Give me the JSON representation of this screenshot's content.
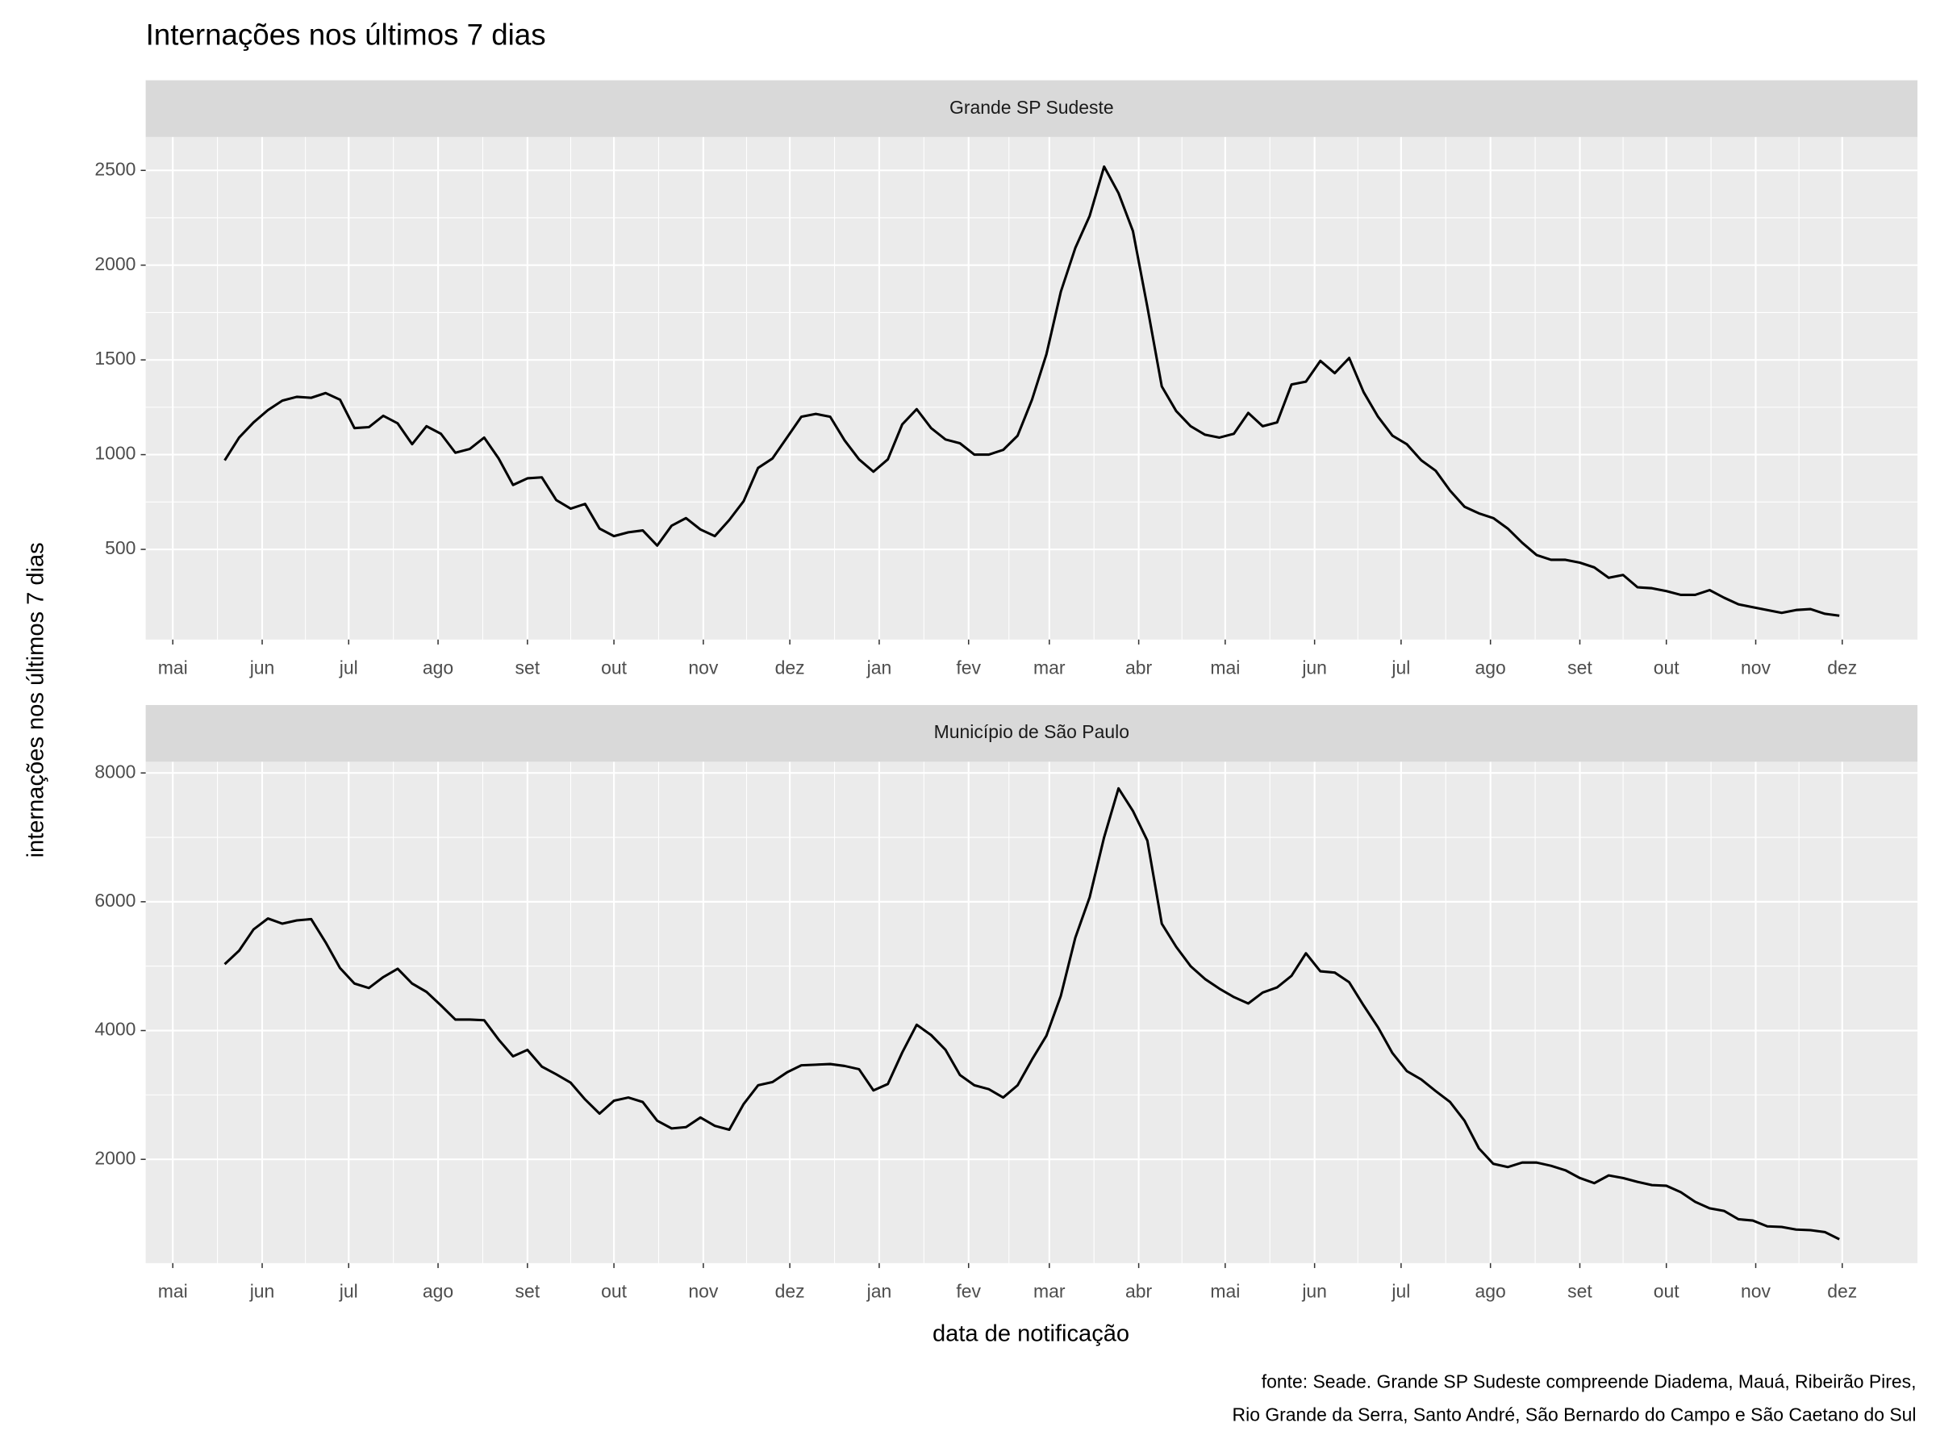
{
  "title": "Internações nos últimos 7 dias",
  "x_label": "data de notificação",
  "y_label": "internações nos últimos 7 dias",
  "caption": [
    "fonte: Seade. Grande SP Sudeste compreende Diadema, Mauá, Ribeirão Pires,",
    "Rio Grande da Serra, Santo André, São Bernardo do Campo e São Caetano do Sul"
  ],
  "chart_data": [
    {
      "type": "line",
      "title": "Grande SP Sudeste",
      "color": "#000000",
      "grid": true,
      "x": [
        18,
        23,
        28,
        33,
        38,
        43,
        48,
        53,
        58,
        63,
        68,
        73,
        78,
        83,
        88,
        93,
        98,
        103,
        108,
        113,
        118,
        123,
        128,
        133,
        138,
        143,
        148,
        153,
        158,
        163,
        168,
        173,
        178,
        183,
        188,
        193,
        198,
        203,
        208,
        213,
        218,
        223,
        228,
        233,
        238,
        243,
        248,
        253,
        258,
        263,
        268,
        273,
        278,
        283,
        288,
        293,
        298,
        303,
        308,
        313,
        318,
        323,
        328,
        333,
        338,
        343,
        348,
        353,
        358,
        363,
        368,
        373,
        378,
        383,
        388,
        393,
        398,
        403,
        408,
        413,
        418,
        423,
        428,
        433,
        438,
        443,
        448,
        453,
        458,
        463,
        468,
        473,
        478,
        483,
        488,
        493,
        498,
        503,
        508,
        513,
        518,
        523,
        528,
        533,
        538,
        543,
        548,
        553,
        558,
        563,
        568,
        573,
        578
      ],
      "values": [
        970,
        1090,
        1170,
        1235,
        1285,
        1305,
        1300,
        1325,
        1290,
        1140,
        1145,
        1205,
        1165,
        1055,
        1150,
        1110,
        1010,
        1030,
        1090,
        980,
        840,
        875,
        880,
        760,
        715,
        740,
        610,
        570,
        590,
        600,
        520,
        625,
        665,
        605,
        570,
        655,
        755,
        930,
        980,
        1090,
        1200,
        1215,
        1200,
        1075,
        975,
        910,
        975,
        1160,
        1240,
        1140,
        1080,
        1060,
        1000,
        1000,
        1025,
        1100,
        1290,
        1530,
        1860,
        2090,
        2260,
        2520,
        2380,
        2180,
        1780,
        1360,
        1230,
        1150,
        1105,
        1090,
        1110,
        1220,
        1150,
        1170,
        1370,
        1385,
        1495,
        1430,
        1510,
        1330,
        1200,
        1100,
        1055,
        970,
        915,
        810,
        725,
        690,
        665,
        610,
        535,
        470,
        445,
        445,
        430,
        405,
        350,
        365,
        300,
        295,
        280,
        260,
        260,
        285,
        245,
        210,
        195,
        180,
        165,
        180,
        185,
        160,
        150
      ],
      "xlim": [
        -9.4,
        605.1
      ],
      "xticks": [
        {
          "value": 0,
          "label": "mai"
        },
        {
          "value": 31,
          "label": "jun"
        },
        {
          "value": 61,
          "label": "jul"
        },
        {
          "value": 92,
          "label": "ago"
        },
        {
          "value": 123,
          "label": "set"
        },
        {
          "value": 153,
          "label": "out"
        },
        {
          "value": 184,
          "label": "nov"
        },
        {
          "value": 214,
          "label": "dez"
        },
        {
          "value": 245,
          "label": "jan"
        },
        {
          "value": 276,
          "label": "fev"
        },
        {
          "value": 304,
          "label": "mar"
        },
        {
          "value": 335,
          "label": "abr"
        },
        {
          "value": 365,
          "label": "mai"
        },
        {
          "value": 396,
          "label": "jun"
        },
        {
          "value": 426,
          "label": "jul"
        },
        {
          "value": 457,
          "label": "ago"
        },
        {
          "value": 488,
          "label": "set"
        },
        {
          "value": 518,
          "label": "out"
        },
        {
          "value": 549,
          "label": "nov"
        },
        {
          "value": 579,
          "label": "dez"
        }
      ],
      "ylim": [
        24,
        2676
      ],
      "yticks": [
        500,
        1000,
        1500,
        2000,
        2500
      ]
    },
    {
      "type": "line",
      "title": "Município de São Paulo",
      "color": "#000000",
      "grid": true,
      "x": [
        18,
        23,
        28,
        33,
        38,
        43,
        48,
        53,
        58,
        63,
        68,
        73,
        78,
        83,
        88,
        93,
        98,
        103,
        108,
        113,
        118,
        123,
        128,
        133,
        138,
        143,
        148,
        153,
        158,
        163,
        168,
        173,
        178,
        183,
        188,
        193,
        198,
        203,
        208,
        213,
        218,
        223,
        228,
        233,
        238,
        243,
        248,
        253,
        258,
        263,
        268,
        273,
        278,
        283,
        288,
        293,
        298,
        303,
        308,
        313,
        318,
        323,
        328,
        333,
        338,
        343,
        348,
        353,
        358,
        363,
        368,
        373,
        378,
        383,
        388,
        393,
        398,
        403,
        408,
        413,
        418,
        423,
        428,
        433,
        438,
        443,
        448,
        453,
        458,
        463,
        468,
        473,
        478,
        483,
        488,
        493,
        498,
        503,
        508,
        513,
        518,
        523,
        528,
        533,
        538,
        543,
        548,
        553,
        558,
        563,
        568,
        573,
        578
      ],
      "values": [
        5030,
        5240,
        5570,
        5740,
        5660,
        5710,
        5730,
        5370,
        4970,
        4730,
        4660,
        4830,
        4960,
        4730,
        4600,
        4390,
        4170,
        4170,
        4160,
        3860,
        3600,
        3700,
        3440,
        3320,
        3190,
        2930,
        2710,
        2910,
        2960,
        2890,
        2600,
        2480,
        2500,
        2650,
        2520,
        2460,
        2860,
        3150,
        3200,
        3350,
        3460,
        3470,
        3480,
        3450,
        3400,
        3070,
        3170,
        3660,
        4090,
        3930,
        3700,
        3310,
        3150,
        3090,
        2960,
        3150,
        3550,
        3920,
        4540,
        5440,
        6070,
        7000,
        7760,
        7410,
        6950,
        5660,
        5300,
        5000,
        4800,
        4650,
        4520,
        4420,
        4590,
        4670,
        4850,
        5200,
        4920,
        4900,
        4750,
        4390,
        4050,
        3650,
        3370,
        3240,
        3060,
        2890,
        2600,
        2170,
        1930,
        1880,
        1950,
        1950,
        1900,
        1830,
        1710,
        1630,
        1750,
        1710,
        1650,
        1600,
        1590,
        1490,
        1340,
        1240,
        1200,
        1070,
        1050,
        960,
        950,
        910,
        900,
        870,
        760
      ],
      "xlim": [
        -9.4,
        605.1
      ],
      "xticks": [
        {
          "value": 0,
          "label": "mai"
        },
        {
          "value": 31,
          "label": "jun"
        },
        {
          "value": 61,
          "label": "jul"
        },
        {
          "value": 92,
          "label": "ago"
        },
        {
          "value": 123,
          "label": "set"
        },
        {
          "value": 153,
          "label": "out"
        },
        {
          "value": 184,
          "label": "nov"
        },
        {
          "value": 214,
          "label": "dez"
        },
        {
          "value": 245,
          "label": "jan"
        },
        {
          "value": 276,
          "label": "fev"
        },
        {
          "value": 304,
          "label": "mar"
        },
        {
          "value": 335,
          "label": "abr"
        },
        {
          "value": 365,
          "label": "mai"
        },
        {
          "value": 396,
          "label": "jun"
        },
        {
          "value": 426,
          "label": "jul"
        },
        {
          "value": 457,
          "label": "ago"
        },
        {
          "value": 488,
          "label": "set"
        },
        {
          "value": 518,
          "label": "out"
        },
        {
          "value": 549,
          "label": "nov"
        },
        {
          "value": 579,
          "label": "dez"
        }
      ],
      "ylim": [
        389,
        8173
      ],
      "yticks": [
        2000,
        4000,
        6000,
        8000
      ]
    }
  ]
}
